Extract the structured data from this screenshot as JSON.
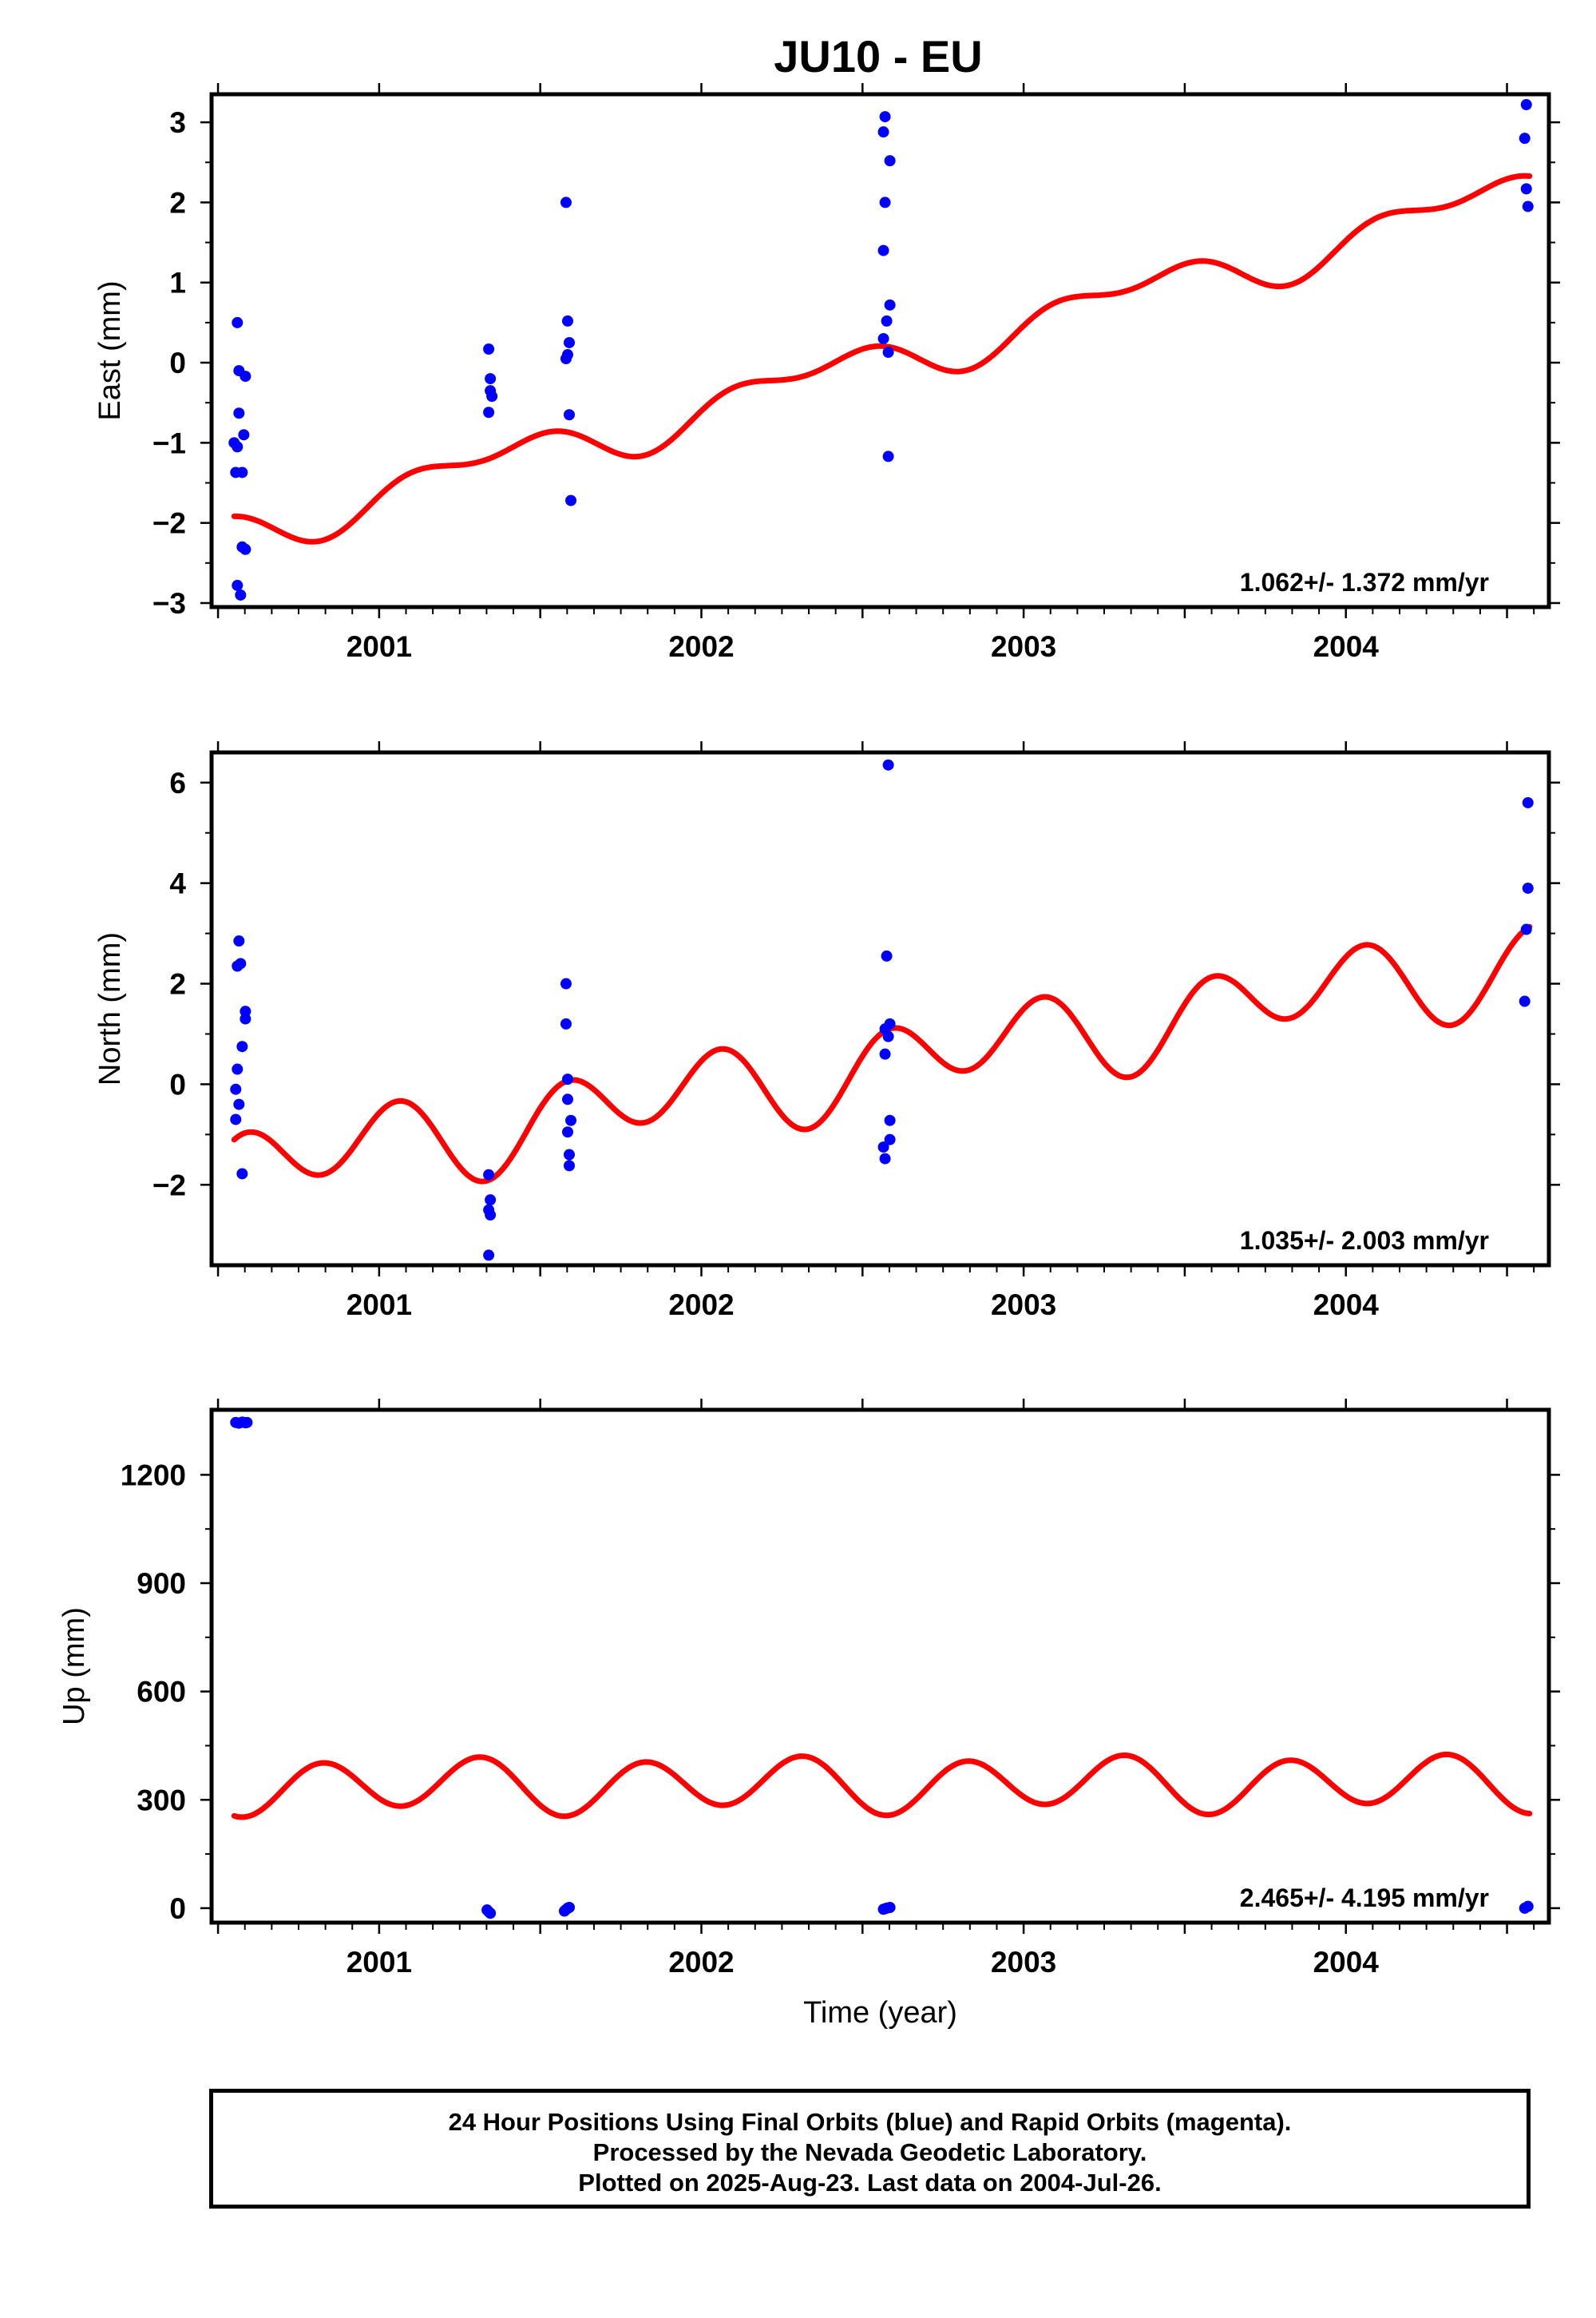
{
  "title": "JU10 - EU",
  "colors": {
    "final_orbits": "#0000ff",
    "model_fit": "#ff0000",
    "frame": "#000000"
  },
  "caption": {
    "line1": "24 Hour Positions Using Final Orbits (blue) and Rapid Orbits (magenta).",
    "line2": "Processed by the Nevada Geodetic Laboratory.",
    "line3": "Plotted on 2025-Aug-23. Last data on 2004-Jul-26."
  },
  "chart_data": [
    {
      "type": "scatter",
      "ylabel": "East (mm)",
      "xlabel": "",
      "xlim": [
        2000.48,
        2004.63
      ],
      "ylim": [
        -3.05,
        3.35
      ],
      "yticks": [
        -3,
        -2,
        -1,
        0,
        1,
        2,
        3
      ],
      "ytick_labels": [
        "−3",
        "−2",
        "−1",
        "0",
        "1",
        "2",
        "3"
      ],
      "xticks": [
        2001,
        2002,
        2003,
        2004
      ],
      "xtick_labels": [
        "2001",
        "2002",
        "2003",
        "2004"
      ],
      "rate_label": "1.062+/- 1.372 mm/yr",
      "points": [
        [
          2000.56,
          0.5
        ],
        [
          2000.55,
          -1.0
        ],
        [
          2000.565,
          -0.1
        ],
        [
          2000.585,
          -0.17
        ],
        [
          2000.565,
          -0.63
        ],
        [
          2000.58,
          -0.9
        ],
        [
          2000.56,
          -1.05
        ],
        [
          2000.555,
          -1.37
        ],
        [
          2000.575,
          -1.37
        ],
        [
          2000.575,
          -2.3
        ],
        [
          2000.585,
          -2.33
        ],
        [
          2000.56,
          -2.78
        ],
        [
          2000.57,
          -2.9
        ],
        [
          2001.34,
          0.17
        ],
        [
          2001.345,
          -0.2
        ],
        [
          2001.345,
          -0.35
        ],
        [
          2001.35,
          -0.42
        ],
        [
          2001.34,
          -0.62
        ],
        [
          2001.58,
          2.0
        ],
        [
          2001.585,
          0.52
        ],
        [
          2001.59,
          0.25
        ],
        [
          2001.585,
          0.1
        ],
        [
          2001.58,
          0.05
        ],
        [
          2001.59,
          -0.65
        ],
        [
          2001.595,
          -1.72
        ],
        [
          2002.57,
          3.07
        ],
        [
          2002.565,
          2.88
        ],
        [
          2002.585,
          2.52
        ],
        [
          2002.57,
          2.0
        ],
        [
          2002.565,
          1.4
        ],
        [
          2002.585,
          0.72
        ],
        [
          2002.575,
          0.52
        ],
        [
          2002.565,
          0.3
        ],
        [
          2002.58,
          0.13
        ],
        [
          2002.58,
          -1.17
        ],
        [
          2004.56,
          3.22
        ],
        [
          2004.555,
          2.8
        ],
        [
          2004.56,
          2.17
        ],
        [
          2004.565,
          1.95
        ]
      ],
      "model": {
        "offset": -0.05,
        "trend": 1.062,
        "t0": 2002.5,
        "annual_cos": 0.12,
        "annual_sin": -0.2,
        "semiannual_cos": 0.1,
        "semiannual_sin": 0.12
      }
    },
    {
      "type": "scatter",
      "ylabel": "North (mm)",
      "xlabel": "",
      "xlim": [
        2000.48,
        2004.63
      ],
      "ylim": [
        -3.6,
        6.6
      ],
      "yticks": [
        -2,
        0,
        2,
        4,
        6
      ],
      "ytick_labels": [
        "−2",
        "0",
        "2",
        "4",
        "6"
      ],
      "xticks": [
        2001,
        2002,
        2003,
        2004
      ],
      "xtick_labels": [
        "2001",
        "2002",
        "2003",
        "2004"
      ],
      "rate_label": "1.035+/- 2.003 mm/yr",
      "points": [
        [
          2000.565,
          2.85
        ],
        [
          2000.57,
          2.4
        ],
        [
          2000.56,
          2.35
        ],
        [
          2000.585,
          1.45
        ],
        [
          2000.585,
          1.3
        ],
        [
          2000.575,
          0.75
        ],
        [
          2000.56,
          0.3
        ],
        [
          2000.555,
          -0.1
        ],
        [
          2000.565,
          -0.4
        ],
        [
          2000.555,
          -0.7
        ],
        [
          2000.575,
          -1.78
        ],
        [
          2001.34,
          -1.8
        ],
        [
          2001.345,
          -2.3
        ],
        [
          2001.34,
          -2.5
        ],
        [
          2001.345,
          -2.6
        ],
        [
          2001.34,
          -3.4
        ],
        [
          2001.58,
          2.0
        ],
        [
          2001.58,
          1.2
        ],
        [
          2001.585,
          0.1
        ],
        [
          2001.585,
          -0.3
        ],
        [
          2001.595,
          -0.72
        ],
        [
          2001.585,
          -0.95
        ],
        [
          2001.59,
          -1.4
        ],
        [
          2001.59,
          -1.62
        ],
        [
          2002.58,
          6.35
        ],
        [
          2002.575,
          2.55
        ],
        [
          2002.585,
          1.2
        ],
        [
          2002.57,
          1.1
        ],
        [
          2002.58,
          0.95
        ],
        [
          2002.57,
          0.6
        ],
        [
          2002.585,
          -0.72
        ],
        [
          2002.585,
          -1.1
        ],
        [
          2002.565,
          -1.25
        ],
        [
          2002.57,
          -1.48
        ],
        [
          2004.565,
          5.6
        ],
        [
          2004.565,
          3.9
        ],
        [
          2004.56,
          3.08
        ],
        [
          2004.555,
          1.65
        ]
      ],
      "model": {
        "offset": 0.34,
        "trend": 1.035,
        "t0": 2002.5,
        "annual_cos": -0.21,
        "annual_sin": 0.26,
        "semiannual_cos": 0.43,
        "semiannual_sin": 0.59
      }
    },
    {
      "type": "scatter",
      "ylabel": "Up (mm)",
      "xlabel": "Time (year)",
      "xlim": [
        2000.48,
        2004.63
      ],
      "ylim": [
        -40,
        1380
      ],
      "yticks": [
        0,
        300,
        600,
        900,
        1200
      ],
      "ytick_labels": [
        "0",
        "300",
        "600",
        "900",
        "1200"
      ],
      "xticks": [
        2001,
        2002,
        2003,
        2004
      ],
      "xtick_labels": [
        "2001",
        "2002",
        "2003",
        "2004"
      ],
      "rate_label": "2.465+/- 4.195 mm/yr",
      "points": [
        [
          2000.555,
          1345
        ],
        [
          2000.565,
          1343
        ],
        [
          2000.575,
          1346
        ],
        [
          2000.585,
          1344
        ],
        [
          2000.59,
          1345
        ],
        [
          2001.335,
          -5
        ],
        [
          2001.34,
          -10
        ],
        [
          2001.345,
          -14
        ],
        [
          2001.575,
          -8
        ],
        [
          2001.58,
          -4
        ],
        [
          2001.585,
          0
        ],
        [
          2001.59,
          2
        ],
        [
          2002.565,
          -3
        ],
        [
          2002.575,
          0
        ],
        [
          2002.585,
          2
        ],
        [
          2004.555,
          0
        ],
        [
          2004.565,
          5
        ]
      ],
      "model": {
        "offset": 342.5,
        "trend": 2.465,
        "t0": 2002.5,
        "annual_cos": -10.0,
        "annual_sin": -13.0,
        "semiannual_cos": -45.0,
        "semiannual_sin": -55.0
      }
    }
  ]
}
